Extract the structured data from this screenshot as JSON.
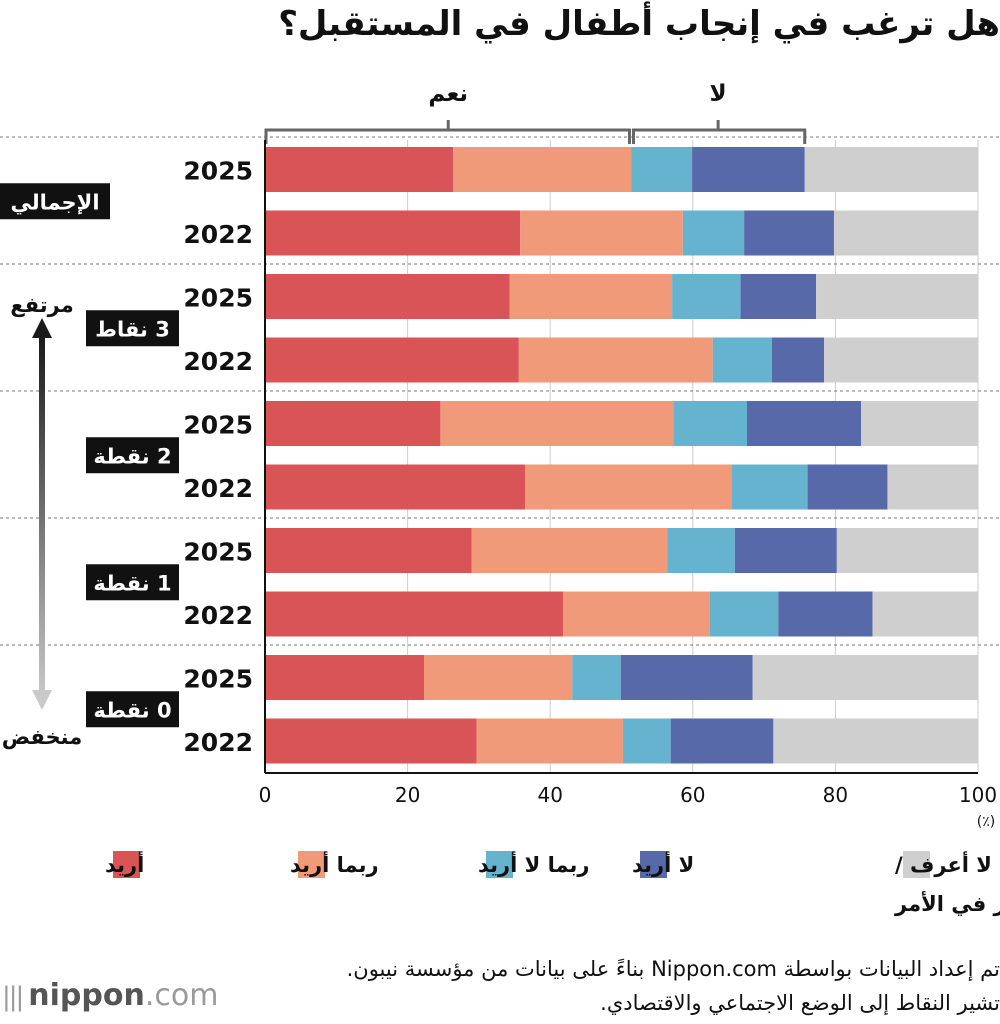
{
  "title": "هل ترغب في إنجاب أطفال في المستقبل؟",
  "bracket_labels": {
    "yes": "نعم",
    "no": "لا"
  },
  "arrow_labels": {
    "high": "مرتفع",
    "low": "منخفض"
  },
  "colors": {
    "want": "#d95457",
    "maybe_want": "#f09a7a",
    "maybe_not": "#66b3cf",
    "dont_want": "#5769a8",
    "dont_know": "#cfcfcf"
  },
  "chart_data": {
    "type": "bar",
    "orientation": "horizontal",
    "stacked": true,
    "x_unit": "(٪)",
    "xlim": [
      0,
      100
    ],
    "x_ticks": [
      "0",
      "20",
      "40",
      "60",
      "80",
      "100"
    ],
    "grid": true,
    "legend_position": "bottom",
    "groups": [
      {
        "label": "الإجمالي",
        "rows": [
          {
            "year": "2025",
            "values": [
              26.4,
              25.0,
              8.5,
              15.8,
              24.3
            ]
          },
          {
            "year": "2022",
            "values": [
              35.8,
              22.8,
              8.6,
              12.6,
              20.2
            ]
          }
        ]
      },
      {
        "label": "3 نقاط",
        "rows": [
          {
            "year": "2025",
            "values": [
              34.3,
              22.8,
              9.6,
              10.6,
              22.7
            ]
          },
          {
            "year": "2022",
            "values": [
              35.6,
              27.2,
              8.3,
              7.3,
              21.6
            ]
          }
        ]
      },
      {
        "label": "2 نقطة",
        "rows": [
          {
            "year": "2025",
            "values": [
              24.6,
              32.7,
              10.3,
              16.0,
              16.4
            ]
          },
          {
            "year": "2022",
            "values": [
              36.5,
              29.0,
              10.6,
              11.2,
              12.7
            ]
          }
        ]
      },
      {
        "label": "1 نقطة",
        "rows": [
          {
            "year": "2025",
            "values": [
              29.0,
              27.4,
              9.5,
              14.3,
              19.8
            ]
          },
          {
            "year": "2022",
            "values": [
              41.8,
              20.6,
              9.6,
              13.2,
              14.8
            ]
          }
        ]
      },
      {
        "label": "0 نقطة",
        "rows": [
          {
            "year": "2025",
            "values": [
              22.3,
              20.8,
              6.8,
              18.5,
              31.6
            ]
          },
          {
            "year": "2022",
            "values": [
              29.7,
              20.5,
              6.7,
              14.4,
              28.7
            ]
          }
        ]
      }
    ],
    "series": [
      {
        "name": "أريد",
        "color_key": "want"
      },
      {
        "name": "ربما أريد",
        "color_key": "maybe_want"
      },
      {
        "name": "ربما لا أريد",
        "color_key": "maybe_not"
      },
      {
        "name": "لا أريد",
        "color_key": "dont_want"
      },
      {
        "name": "لا أعرف / لم أفكر في الأمر",
        "color_key": "dont_know"
      }
    ]
  },
  "legend": {
    "want": "أريد",
    "maybe_want": "ربما أريد",
    "maybe_not": "ربما لا أريد",
    "dont_want": "لا أريد",
    "dont_know_line1": "لا أعرف /",
    "dont_know_line2": "لم أفكر في الأمر"
  },
  "source_text": "تم إعداد البيانات بواسطة Nippon.com بناءً على بيانات من مؤسسة نيبون. تشير النقاط إلى الوضع الاجتماعي والاقتصادي.",
  "logo": {
    "brand": "nippon",
    "tld": ".com"
  }
}
